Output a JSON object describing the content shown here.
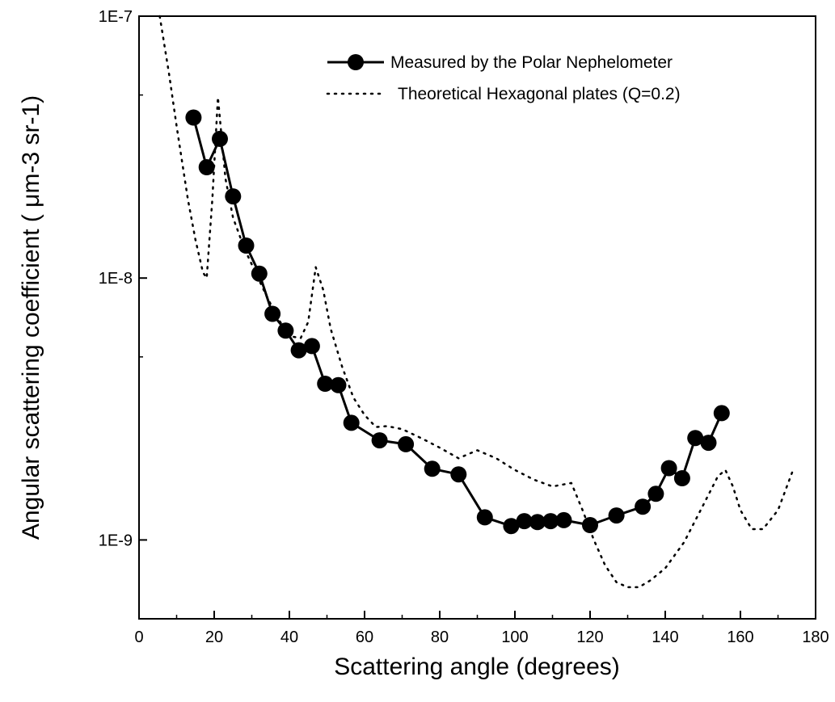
{
  "chart_data": {
    "type": "line",
    "title": "",
    "xlabel": "Scattering angle (degrees)",
    "ylabel": "Angular scattering coefficient ( μm-3 sr-1)",
    "xlim": [
      0,
      180
    ],
    "ylim": [
      5e-10,
      1e-07
    ],
    "yscale": "log",
    "grid": false,
    "legend_position": "top-right",
    "x_ticks": [
      0,
      20,
      40,
      60,
      80,
      100,
      120,
      140,
      160,
      180
    ],
    "x_tick_labels": [
      "0",
      "20",
      "40",
      "60",
      "80",
      "100",
      "120",
      "140",
      "160",
      "180"
    ],
    "y_ticks": [
      1e-09,
      1e-08,
      1e-07
    ],
    "y_tick_labels": [
      "1E-9",
      "1E-8",
      "1E-7"
    ],
    "series": [
      {
        "name": "Measured by the Polar Nephelometer",
        "style": "line-with-circle-markers",
        "color": "#000000",
        "x": [
          14.5,
          18,
          21.5,
          25,
          28.5,
          32,
          35.5,
          39,
          42.5,
          46,
          49.5,
          53,
          56.5,
          64,
          71,
          78,
          85,
          92,
          99,
          102.5,
          106,
          109.5,
          113,
          120,
          127,
          134,
          137.5,
          141,
          144.5,
          148,
          151.5,
          155
        ],
        "y": [
          4.1e-08,
          2.65e-08,
          3.4e-08,
          2.05e-08,
          1.33e-08,
          1.04e-08,
          7.3e-09,
          6.3e-09,
          5.3e-09,
          5.5e-09,
          3.95e-09,
          3.9e-09,
          2.8e-09,
          2.4e-09,
          2.32e-09,
          1.87e-09,
          1.78e-09,
          1.22e-09,
          1.13e-09,
          1.18e-09,
          1.17e-09,
          1.18e-09,
          1.19e-09,
          1.14e-09,
          1.24e-09,
          1.34e-09,
          1.5e-09,
          1.88e-09,
          1.72e-09,
          2.45e-09,
          2.35e-09,
          3.05e-09
        ]
      },
      {
        "name": "Theoretical Hexagonal plates (Q=0.2)",
        "style": "dotted-line",
        "color": "#000000",
        "x": [
          5.5,
          8,
          10,
          13,
          15,
          17,
          18,
          19.5,
          21,
          23,
          25,
          28,
          31,
          34,
          37,
          40,
          43,
          45,
          47,
          49,
          51,
          54,
          57,
          60,
          63,
          66,
          70,
          75,
          80,
          85,
          90,
          95,
          100,
          105,
          110,
          115,
          118,
          121,
          124,
          127,
          130,
          133,
          136,
          140,
          145,
          150,
          154,
          156,
          158,
          160,
          163,
          166,
          170,
          174
        ],
        "y": [
          1e-07,
          6e-08,
          3.8e-08,
          2e-08,
          1.4e-08,
          1.05e-08,
          1e-08,
          2e-08,
          4.9e-08,
          2.4e-08,
          1.7e-08,
          1.3e-08,
          1.05e-08,
          8.5e-09,
          7e-09,
          6e-09,
          5.9e-09,
          6.8e-09,
          1.1e-08,
          9e-09,
          6.4e-09,
          4.6e-09,
          3.5e-09,
          3e-09,
          2.7e-09,
          2.72e-09,
          2.65e-09,
          2.45e-09,
          2.25e-09,
          2.05e-09,
          2.2e-09,
          2.05e-09,
          1.85e-09,
          1.7e-09,
          1.6e-09,
          1.65e-09,
          1.3e-09,
          1e-09,
          8e-10,
          6.9e-10,
          6.6e-10,
          6.6e-10,
          7e-10,
          7.8e-10,
          9.8e-10,
          1.35e-09,
          1.75e-09,
          1.85e-09,
          1.6e-09,
          1.3e-09,
          1.1e-09,
          1.1e-09,
          1.3e-09,
          1.85e-09
        ]
      }
    ]
  }
}
